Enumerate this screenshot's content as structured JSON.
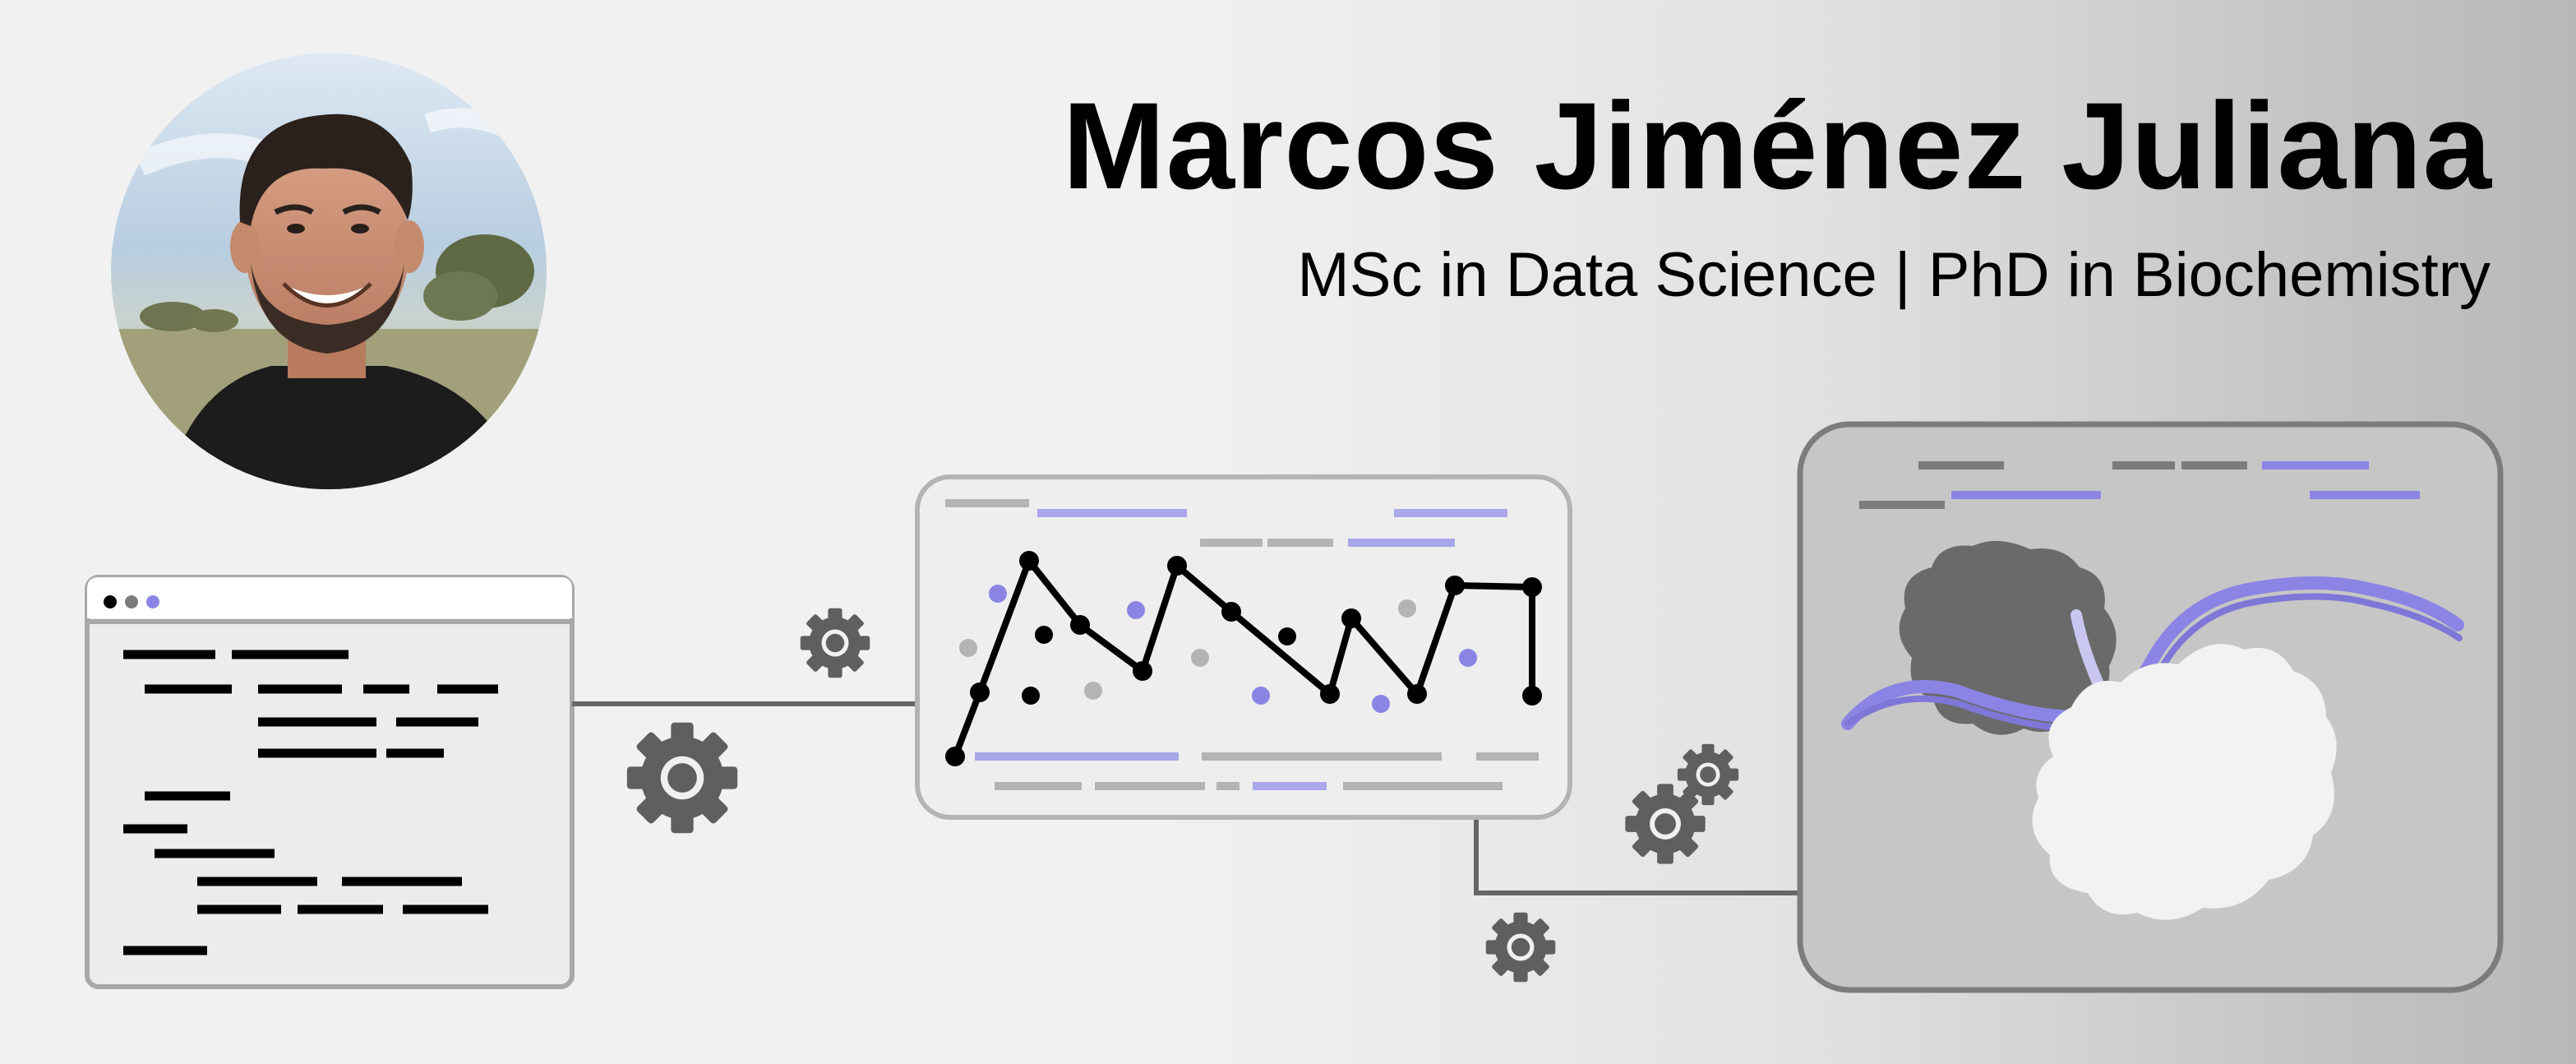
{
  "header": {
    "name": "Marcos Jiménez Juliana",
    "tagline": "MSc in Data Science | PhD in Biochemistry"
  },
  "colors": {
    "accent_purple": "#8b84e4",
    "accent_purple_light": "#aaa6ea",
    "dark_gray": "#666666",
    "mid_gray": "#aaaaaa",
    "protein_dark": "#6a6a6a",
    "protein_light": "#f2f2f2"
  },
  "icons": [
    "profile-photo",
    "code-window",
    "gear-icon",
    "line-chart",
    "protein-dna-structure"
  ]
}
